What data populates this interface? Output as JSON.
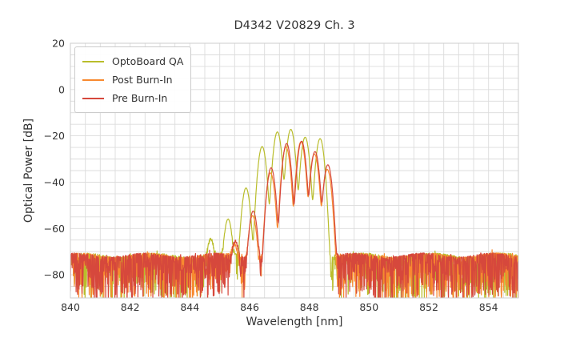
{
  "figure": {
    "background": "#ffffff",
    "grid_color": "#dcdcdc",
    "spine_color": "#cccccc",
    "text_color": "#333333"
  },
  "chart_data": {
    "type": "line",
    "title": "D4342 V20829 Ch. 3",
    "xlabel": "Wavelength [nm]",
    "ylabel": "Optical Power [dB]",
    "xlim": [
      840,
      855
    ],
    "ylim": [
      -90,
      20
    ],
    "x_ticks": [
      840,
      842,
      844,
      846,
      848,
      850,
      852,
      854
    ],
    "y_ticks": [
      20,
      0,
      -20,
      -40,
      -60,
      -80
    ],
    "grid": {
      "on": true,
      "x_step_nm": 0.5,
      "y_step_db": 5
    },
    "legend_position": "upper left",
    "noise_floor": {
      "top_db": -71.5,
      "dips_below_db": -90
    },
    "mode_shape": {
      "width_nm_at_minus10db": 0.145,
      "exponent": 2
    },
    "series": [
      {
        "name": "OptoBoard QA",
        "color": "#b9bd2b",
        "noise_seed": 101,
        "peaks": [
          [
            844.7,
            -65.0
          ],
          [
            845.28,
            -56.0
          ],
          [
            845.88,
            -42.5
          ],
          [
            846.42,
            -24.6
          ],
          [
            846.93,
            -18.3
          ],
          [
            847.38,
            -17.2
          ],
          [
            847.86,
            -20.6
          ],
          [
            848.36,
            -21.2
          ]
        ]
      },
      {
        "name": "Post Burn-In",
        "color": "#f8892f",
        "noise_seed": 202,
        "peaks": [
          [
            845.5,
            -67.5
          ],
          [
            846.1,
            -54.5
          ],
          [
            846.7,
            -36.0
          ],
          [
            847.22,
            -24.8
          ],
          [
            847.72,
            -22.6
          ],
          [
            848.17,
            -27.8
          ],
          [
            848.6,
            -34.5
          ]
        ]
      },
      {
        "name": "Pre Burn-In",
        "color": "#d6483c",
        "noise_seed": 303,
        "peaks": [
          [
            845.52,
            -66.0
          ],
          [
            846.12,
            -52.5
          ],
          [
            846.72,
            -33.8
          ],
          [
            847.24,
            -23.3
          ],
          [
            847.74,
            -22.3
          ],
          [
            848.19,
            -26.8
          ],
          [
            848.62,
            -32.5
          ]
        ]
      }
    ]
  }
}
